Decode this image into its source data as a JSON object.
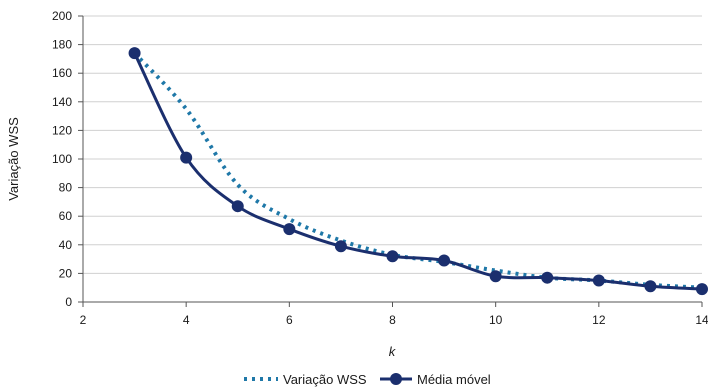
{
  "chart_data": {
    "type": "line",
    "xlabel": "k",
    "ylabel": "Variação WSS",
    "xlim": [
      2,
      14
    ],
    "ylim": [
      0,
      200
    ],
    "x_ticks": [
      2,
      4,
      6,
      8,
      10,
      12,
      14
    ],
    "y_ticks": [
      0,
      20,
      40,
      60,
      80,
      100,
      120,
      140,
      160,
      180,
      200
    ],
    "grid": "horizontal",
    "legend_position": "bottom-center",
    "series": [
      {
        "name": "Variação WSS",
        "style": "dotted",
        "color": "#1f78a8",
        "markers": false,
        "x": [
          3,
          4,
          5,
          6,
          7,
          8,
          9,
          10,
          11,
          12,
          13,
          14
        ],
        "y": [
          174,
          135,
          82,
          58,
          43,
          33,
          28,
          22,
          17,
          15,
          12,
          10
        ]
      },
      {
        "name": "Média móvel",
        "style": "solid",
        "color": "#1b2f6e",
        "markers": true,
        "x": [
          3,
          4,
          5,
          6,
          7,
          8,
          9,
          10,
          11,
          12,
          13,
          14
        ],
        "y": [
          174,
          101,
          67,
          51,
          39,
          32,
          29,
          18,
          17,
          15,
          11,
          9
        ]
      }
    ]
  }
}
